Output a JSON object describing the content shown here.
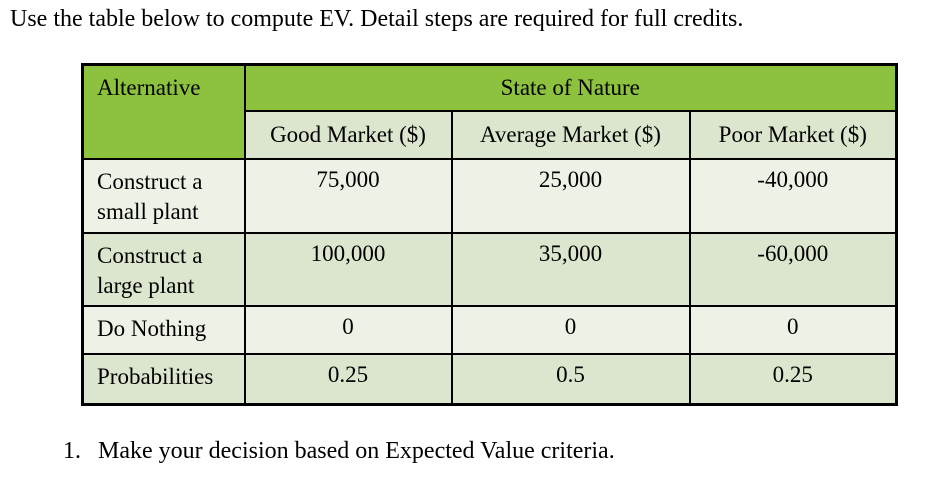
{
  "instruction": "Use the table below to compute EV. Detail steps are required for full credits.",
  "table": {
    "header": {
      "alternative": "Alternative",
      "state_of_nature": "State of Nature",
      "columns": [
        "Good Market ($)",
        "Average Market ($)",
        "Poor Market ($)"
      ]
    },
    "rows": [
      {
        "label": "Construct a small plant",
        "values": [
          "75,000",
          "25,000",
          "-40,000"
        ]
      },
      {
        "label": "Construct a large plant",
        "values": [
          "100,000",
          "35,000",
          "-60,000"
        ]
      },
      {
        "label": "Do Nothing",
        "values": [
          "0",
          "0",
          "0"
        ]
      },
      {
        "label": "Probabilities",
        "values": [
          "0.25",
          "0.5",
          "0.25"
        ]
      }
    ]
  },
  "footer": {
    "item_number": "1.",
    "item_text": "Make your decision based on Expected Value criteria."
  },
  "colors": {
    "header_green": "#8CC23D",
    "band_dark": "#DCE5CD",
    "band_light": "#EEF2E6",
    "border": "#000000",
    "page_background": "#FFFFFF",
    "text": "#000000"
  }
}
